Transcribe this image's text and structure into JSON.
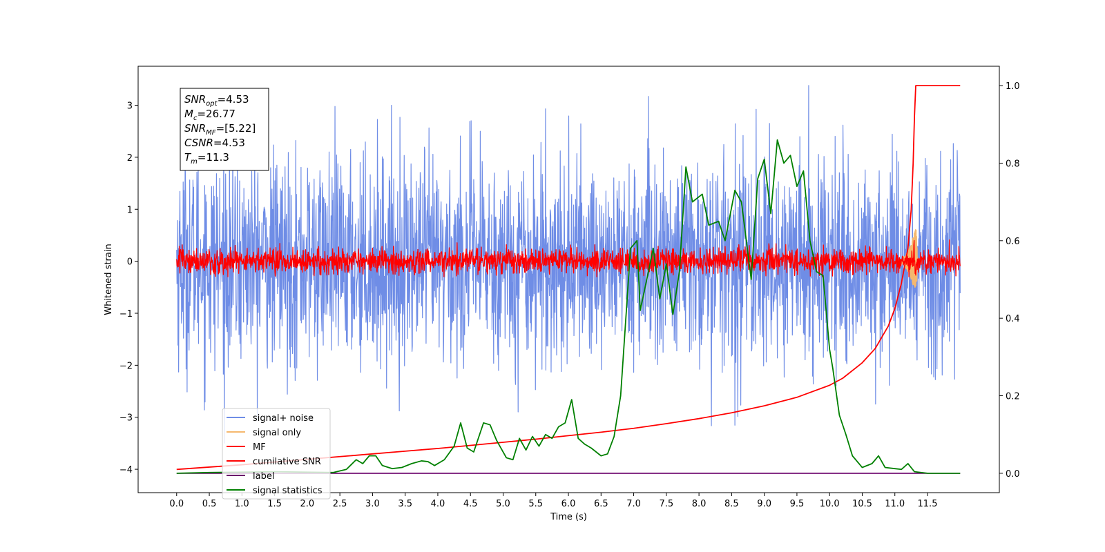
{
  "chart_data": {
    "type": "line",
    "title": "",
    "xlabel": "Time (s)",
    "ylabel": "Whitened strain",
    "xlim": [
      -0.59,
      12.6
    ],
    "ylim_left": [
      -4.45,
      3.75
    ],
    "ylim_right": [
      -0.05,
      1.05
    ],
    "x_ticks": [
      "0.0",
      "0.5",
      "1.0",
      "1.5",
      "2.0",
      "2.5",
      "3.0",
      "3.5",
      "4.0",
      "4.5",
      "5.0",
      "5.5",
      "6.0",
      "6.5",
      "7.0",
      "7.5",
      "8.0",
      "8.5",
      "9.0",
      "9.5",
      "10.0",
      "10.5",
      "11.0",
      "11.5"
    ],
    "y_ticks_left": [
      "−4",
      "−3",
      "−2",
      "−1",
      "0",
      "1",
      "2",
      "3"
    ],
    "y_ticks_right": [
      "0.0",
      "0.2",
      "0.4",
      "0.6",
      "0.8",
      "1.0"
    ],
    "annotation": {
      "lines": [
        {
          "base": "SNR",
          "sub": "opt",
          "value": "=4.53"
        },
        {
          "base": "M",
          "sub": "c",
          "value": "=26.77"
        },
        {
          "base": "SNR",
          "sub": "MF",
          "value": "=[5.22]"
        },
        {
          "base": "CSNR",
          "sub": "",
          "value": "=4.53"
        },
        {
          "base": "T",
          "sub": "m",
          "value": "=11.3"
        }
      ]
    },
    "legend": {
      "position": "lower-left",
      "entries": [
        "signal+ noise",
        "signal only",
        "MF",
        "cumilative SNR",
        "label",
        "signal statistics"
      ]
    },
    "series": [
      {
        "name": "signal+ noise",
        "axis": "left",
        "color": "#6f8de6",
        "kind": "noise",
        "x_range": [
          0,
          12
        ],
        "amplitude": 1.0,
        "envelope": [
          [
            0,
            1.9
          ],
          [
            12,
            1.9
          ]
        ],
        "peak_range": [
          -3.7,
          3.38
        ]
      },
      {
        "name": "signal only",
        "axis": "left",
        "color": "#f5b86e",
        "kind": "chirp",
        "x_range": [
          11.0,
          11.35
        ],
        "peak": 0.8
      },
      {
        "name": "MF",
        "axis": "left",
        "color": "#ff0000",
        "kind": "noise",
        "x_range": [
          0,
          12
        ],
        "amplitude": 0.12,
        "envelope": [
          [
            0,
            0.35
          ],
          [
            12,
            0.35
          ]
        ],
        "peak_range": [
          -0.3,
          0.78
        ]
      },
      {
        "name": "cumilative SNR",
        "axis": "right",
        "color": "#ff0000",
        "kind": "line",
        "x": [
          0,
          0.5,
          1,
          1.5,
          2,
          2.5,
          3,
          3.5,
          4,
          4.5,
          5,
          5.5,
          6,
          6.5,
          7,
          7.5,
          8,
          8.5,
          9,
          9.5,
          10,
          10.2,
          10.5,
          10.7,
          10.9,
          11.0,
          11.1,
          11.2,
          11.25,
          11.28,
          11.3,
          11.32,
          12
        ],
        "y": [
          0.01,
          0.016,
          0.022,
          0.029,
          0.036,
          0.043,
          0.05,
          0.057,
          0.064,
          0.072,
          0.08,
          0.088,
          0.097,
          0.106,
          0.116,
          0.128,
          0.141,
          0.156,
          0.174,
          0.196,
          0.227,
          0.245,
          0.285,
          0.322,
          0.38,
          0.425,
          0.49,
          0.58,
          0.68,
          0.8,
          0.92,
          1.0,
          1.0
        ]
      },
      {
        "name": "label",
        "axis": "right",
        "color": "#6a006a",
        "kind": "line",
        "x": [
          0,
          12
        ],
        "y": [
          0,
          0
        ]
      },
      {
        "name": "signal statistics",
        "axis": "right",
        "color": "#008000",
        "kind": "line",
        "x": [
          0,
          0.5,
          1,
          1.5,
          2,
          2.4,
          2.6,
          2.75,
          2.85,
          2.95,
          3.05,
          3.15,
          3.3,
          3.45,
          3.6,
          3.75,
          3.85,
          3.95,
          4.1,
          4.25,
          4.35,
          4.45,
          4.55,
          4.7,
          4.8,
          4.9,
          5.05,
          5.15,
          5.25,
          5.35,
          5.45,
          5.55,
          5.65,
          5.75,
          5.85,
          5.95,
          6.05,
          6.15,
          6.25,
          6.35,
          6.5,
          6.6,
          6.7,
          6.8,
          6.9,
          6.95,
          7.05,
          7.1,
          7.2,
          7.3,
          7.4,
          7.5,
          7.6,
          7.7,
          7.8,
          7.9,
          8.05,
          8.15,
          8.3,
          8.4,
          8.55,
          8.65,
          8.8,
          8.9,
          9.0,
          9.1,
          9.2,
          9.3,
          9.4,
          9.5,
          9.6,
          9.7,
          9.8,
          9.9,
          10.0,
          10.05,
          10.15,
          10.25,
          10.35,
          10.5,
          10.65,
          10.75,
          10.85,
          11.0,
          11.1,
          11.2,
          11.3,
          11.5,
          12
        ],
        "y": [
          0.0,
          0.002,
          0.003,
          0.004,
          0.003,
          0.002,
          0.01,
          0.035,
          0.025,
          0.045,
          0.045,
          0.02,
          0.012,
          0.015,
          0.025,
          0.032,
          0.03,
          0.02,
          0.035,
          0.07,
          0.13,
          0.065,
          0.055,
          0.13,
          0.125,
          0.085,
          0.04,
          0.035,
          0.09,
          0.06,
          0.095,
          0.07,
          0.1,
          0.09,
          0.12,
          0.13,
          0.19,
          0.09,
          0.075,
          0.065,
          0.045,
          0.05,
          0.095,
          0.2,
          0.45,
          0.58,
          0.6,
          0.42,
          0.5,
          0.58,
          0.45,
          0.54,
          0.41,
          0.52,
          0.79,
          0.7,
          0.72,
          0.64,
          0.65,
          0.6,
          0.73,
          0.7,
          0.5,
          0.76,
          0.81,
          0.67,
          0.86,
          0.8,
          0.82,
          0.74,
          0.78,
          0.6,
          0.52,
          0.51,
          0.32,
          0.27,
          0.15,
          0.1,
          0.045,
          0.015,
          0.025,
          0.045,
          0.015,
          0.012,
          0.01,
          0.025,
          0.004,
          0.0,
          0.0
        ]
      }
    ]
  }
}
